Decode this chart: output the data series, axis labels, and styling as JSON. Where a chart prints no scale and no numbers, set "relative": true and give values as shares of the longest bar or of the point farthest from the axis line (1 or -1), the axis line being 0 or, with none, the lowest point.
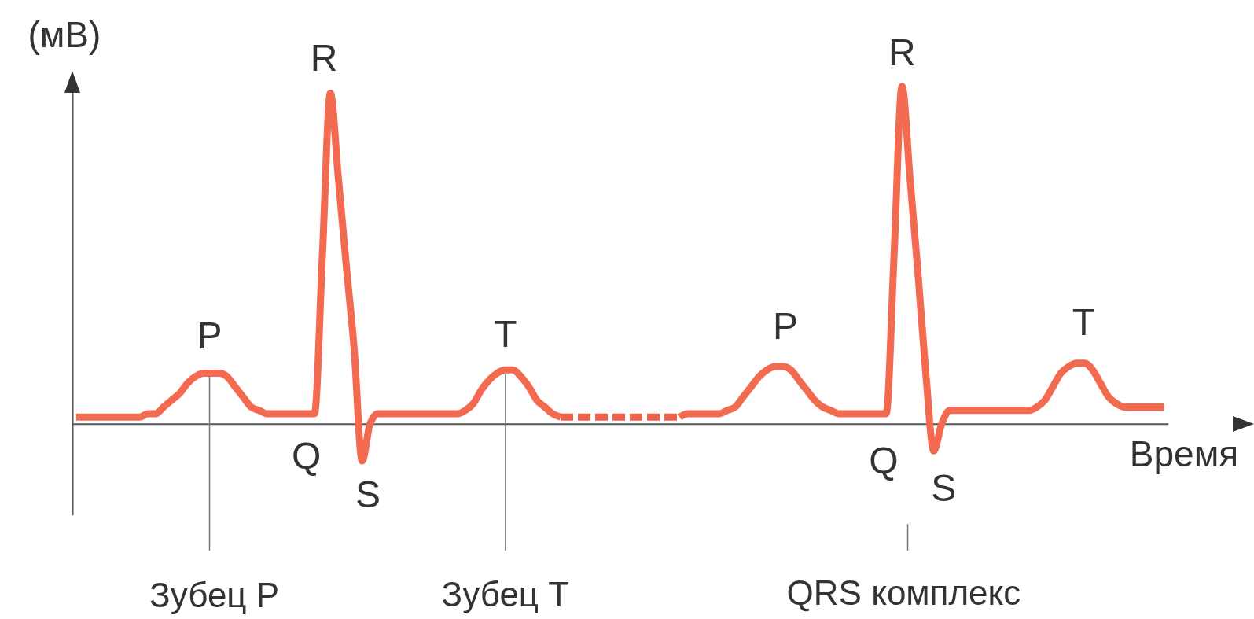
{
  "chart_data": {
    "type": "line",
    "relative": true,
    "ylabel": "(мВ)",
    "xlabel": "Время",
    "categories": [
      null,
      null,
      null,
      null,
      null,
      null,
      null,
      null,
      null,
      null,
      null,
      null,
      null,
      null,
      null,
      null,
      null,
      null,
      null,
      null,
      null,
      null,
      null,
      null,
      null,
      null,
      null,
      null,
      null,
      null,
      null,
      null,
      null,
      null,
      null,
      null,
      null,
      null,
      null,
      null,
      null,
      null,
      null,
      null,
      null,
      null,
      null,
      null,
      null,
      null,
      null,
      null,
      null,
      null,
      null,
      null,
      null,
      null,
      null,
      null,
      null,
      null,
      null,
      null,
      null,
      null,
      null,
      null,
      null,
      null,
      null,
      null,
      null,
      null,
      null,
      null,
      null,
      null,
      null,
      null,
      null,
      null,
      null,
      null,
      null,
      null,
      null,
      null,
      null,
      null,
      null,
      null,
      null,
      null,
      null,
      null,
      null,
      null,
      null,
      null,
      null,
      null,
      null,
      null,
      null,
      null,
      null,
      null,
      null,
      null,
      null,
      null,
      null,
      null,
      null,
      null,
      null,
      null,
      null,
      null,
      null,
      null,
      null,
      null,
      null,
      null,
      null,
      null,
      null,
      null,
      null,
      null,
      null,
      null,
      null,
      null,
      null,
      null
    ],
    "series": [
      {
        "color": "#f26a50",
        "line_style": "solid",
        "values": [
          0.02,
          0.02,
          0.02,
          0.02,
          0.02,
          0.02,
          0.02,
          0.02,
          0.02,
          0.03,
          0.03,
          0.05,
          0.07,
          0.09,
          0.12,
          0.14,
          0.15,
          0.15,
          0.15,
          0.14,
          0.11,
          0.08,
          0.05,
          0.04,
          0.03,
          0.03,
          0.03,
          0.03,
          0.03,
          0.03,
          0.03,
          0.5,
          0.98,
          0.73,
          0.47,
          0.22,
          -0.11,
          0.0,
          0.03,
          0.03,
          0.03,
          0.03,
          0.03,
          0.03,
          0.03,
          0.03,
          0.03,
          0.03,
          0.03,
          0.04,
          0.06,
          0.1,
          0.13,
          0.15,
          0.16,
          0.16,
          0.14,
          0.11,
          0.07,
          0.05,
          0.03,
          0.02,
          null,
          null,
          null,
          null,
          null,
          null,
          null,
          null,
          null,
          null,
          null,
          null,
          null,
          null,
          0.02,
          0.03,
          0.03,
          0.03,
          0.03,
          0.03,
          0.04,
          0.05,
          0.08,
          0.11,
          0.14,
          0.16,
          0.17,
          0.17,
          0.16,
          0.13,
          0.1,
          0.07,
          0.05,
          0.04,
          0.03,
          0.03,
          0.03,
          0.03,
          0.03,
          0.03,
          0.03,
          0.5,
          1,
          0.73,
          0.45,
          0.15,
          -0.08,
          0.0,
          0.04,
          0.04,
          0.04,
          0.04,
          0.04,
          0.04,
          0.04,
          0.04,
          0.04,
          0.04,
          0.04,
          0.05,
          0.07,
          0.11,
          0.15,
          0.17,
          0.18,
          0.18,
          0.16,
          0.12,
          0.08,
          0.06,
          0.05,
          0.05,
          0.05,
          0.05,
          0.05,
          0.05
        ]
      },
      {
        "color": "#ee6049",
        "line_style": "dashed",
        "values": [
          null,
          null,
          null,
          null,
          null,
          null,
          null,
          null,
          null,
          null,
          null,
          null,
          null,
          null,
          null,
          null,
          null,
          null,
          null,
          null,
          null,
          null,
          null,
          null,
          null,
          null,
          null,
          null,
          null,
          null,
          null,
          null,
          null,
          null,
          null,
          null,
          null,
          null,
          null,
          null,
          null,
          null,
          null,
          null,
          null,
          null,
          null,
          null,
          null,
          null,
          null,
          null,
          null,
          null,
          null,
          null,
          null,
          null,
          null,
          null,
          null,
          0.02,
          0.02,
          0.02,
          0.02,
          0.02,
          0.02,
          0.02,
          0.02,
          0.02,
          0.02,
          0.02,
          0.02,
          0.02,
          0.02,
          0.02,
          0.02,
          null,
          null,
          null,
          null,
          null,
          null,
          null,
          null,
          null,
          null,
          null,
          null,
          null,
          null,
          null,
          null,
          null,
          null,
          null,
          null,
          null,
          null,
          null,
          null,
          null,
          null,
          null,
          null,
          null,
          null,
          null,
          null,
          null,
          null,
          null,
          null,
          null,
          null,
          null,
          null,
          null,
          null,
          null,
          null,
          null,
          null,
          null,
          null,
          null,
          null,
          null,
          null,
          null,
          null,
          null,
          null,
          null,
          null,
          null,
          null,
          null
        ]
      }
    ],
    "annotations": [
      "P",
      "Q",
      "R",
      "S",
      "T",
      "P",
      "Q",
      "R",
      "S",
      "T",
      "Зубец P",
      "Зубец T",
      "QRS комплекс"
    ]
  }
}
